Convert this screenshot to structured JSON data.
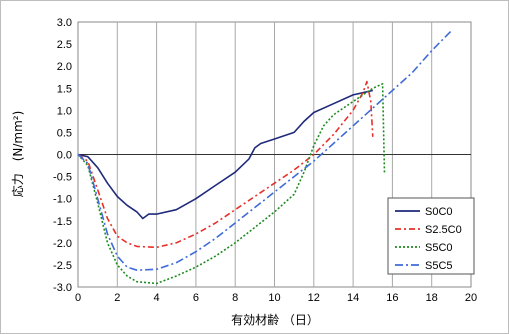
{
  "chart_data": {
    "type": "line",
    "xlabel": "有効材齢 （日）",
    "ylabel": "応力　(N/mm²)",
    "xlim": [
      0,
      20
    ],
    "ylim": [
      -3.0,
      3.0
    ],
    "xticks": [
      0,
      2,
      4,
      6,
      8,
      10,
      12,
      14,
      16,
      18,
      20
    ],
    "yticks": [
      3.0,
      2.5,
      2.0,
      1.5,
      1.0,
      0.5,
      0.0,
      -0.5,
      -1.0,
      -1.5,
      -2.0,
      -2.5,
      -3.0
    ],
    "grid": "vertical",
    "legend_position": "bottom-right",
    "series": [
      {
        "name": "S0C0",
        "color": "#1f2a7a",
        "dash": "solid",
        "points": [
          [
            0,
            0
          ],
          [
            0.5,
            -0.05
          ],
          [
            1,
            -0.3
          ],
          [
            1.5,
            -0.65
          ],
          [
            2,
            -0.95
          ],
          [
            2.5,
            -1.15
          ],
          [
            3,
            -1.3
          ],
          [
            3.3,
            -1.45
          ],
          [
            3.6,
            -1.35
          ],
          [
            4,
            -1.35
          ],
          [
            5,
            -1.25
          ],
          [
            6,
            -1.0
          ],
          [
            7,
            -0.7
          ],
          [
            8,
            -0.4
          ],
          [
            8.7,
            -0.1
          ],
          [
            9,
            0.15
          ],
          [
            9.3,
            0.25
          ],
          [
            10,
            0.35
          ],
          [
            11,
            0.5
          ],
          [
            11.5,
            0.75
          ],
          [
            12,
            0.95
          ],
          [
            13,
            1.15
          ],
          [
            14,
            1.35
          ],
          [
            14.5,
            1.4
          ],
          [
            15,
            1.45
          ]
        ]
      },
      {
        "name": "S2.5C0",
        "color": "#e8302a",
        "dash": "dashdot",
        "points": [
          [
            0,
            0
          ],
          [
            0.5,
            -0.15
          ],
          [
            1,
            -0.8
          ],
          [
            1.5,
            -1.45
          ],
          [
            2,
            -1.85
          ],
          [
            2.5,
            -2.0
          ],
          [
            3,
            -2.08
          ],
          [
            4,
            -2.1
          ],
          [
            5,
            -2.0
          ],
          [
            6,
            -1.8
          ],
          [
            7,
            -1.55
          ],
          [
            8,
            -1.25
          ],
          [
            9,
            -0.95
          ],
          [
            10,
            -0.65
          ],
          [
            11,
            -0.35
          ],
          [
            12,
            0.0
          ],
          [
            13,
            0.45
          ],
          [
            14,
            1.0
          ],
          [
            14.5,
            1.4
          ],
          [
            14.7,
            1.65
          ],
          [
            14.9,
            1.2
          ],
          [
            15.0,
            0.4
          ]
        ]
      },
      {
        "name": "S5C0",
        "color": "#1e8c1e",
        "dash": "dotted",
        "points": [
          [
            0,
            0
          ],
          [
            0.5,
            -0.25
          ],
          [
            1,
            -1.1
          ],
          [
            1.5,
            -2.0
          ],
          [
            2,
            -2.5
          ],
          [
            2.5,
            -2.75
          ],
          [
            3,
            -2.88
          ],
          [
            4,
            -2.92
          ],
          [
            5,
            -2.75
          ],
          [
            6,
            -2.55
          ],
          [
            7,
            -2.3
          ],
          [
            8,
            -2.0
          ],
          [
            9,
            -1.65
          ],
          [
            10,
            -1.3
          ],
          [
            11,
            -0.9
          ],
          [
            11.5,
            -0.4
          ],
          [
            12,
            0.2
          ],
          [
            12.5,
            0.65
          ],
          [
            13,
            0.9
          ],
          [
            14,
            1.2
          ],
          [
            15,
            1.5
          ],
          [
            15.5,
            1.6
          ],
          [
            15.6,
            -0.45
          ]
        ]
      },
      {
        "name": "S5C5",
        "color": "#3f6bd9",
        "dash": "longdash",
        "points": [
          [
            0,
            0
          ],
          [
            0.5,
            -0.2
          ],
          [
            1,
            -1.0
          ],
          [
            1.5,
            -1.8
          ],
          [
            2,
            -2.3
          ],
          [
            2.5,
            -2.55
          ],
          [
            3,
            -2.62
          ],
          [
            4,
            -2.6
          ],
          [
            5,
            -2.45
          ],
          [
            6,
            -2.2
          ],
          [
            7,
            -1.9
          ],
          [
            8,
            -1.55
          ],
          [
            9,
            -1.2
          ],
          [
            10,
            -0.85
          ],
          [
            11,
            -0.5
          ],
          [
            12,
            -0.15
          ],
          [
            13,
            0.25
          ],
          [
            14,
            0.65
          ],
          [
            15,
            1.05
          ],
          [
            16,
            1.45
          ],
          [
            17,
            1.85
          ],
          [
            18,
            2.35
          ],
          [
            19,
            2.8
          ]
        ]
      }
    ]
  }
}
